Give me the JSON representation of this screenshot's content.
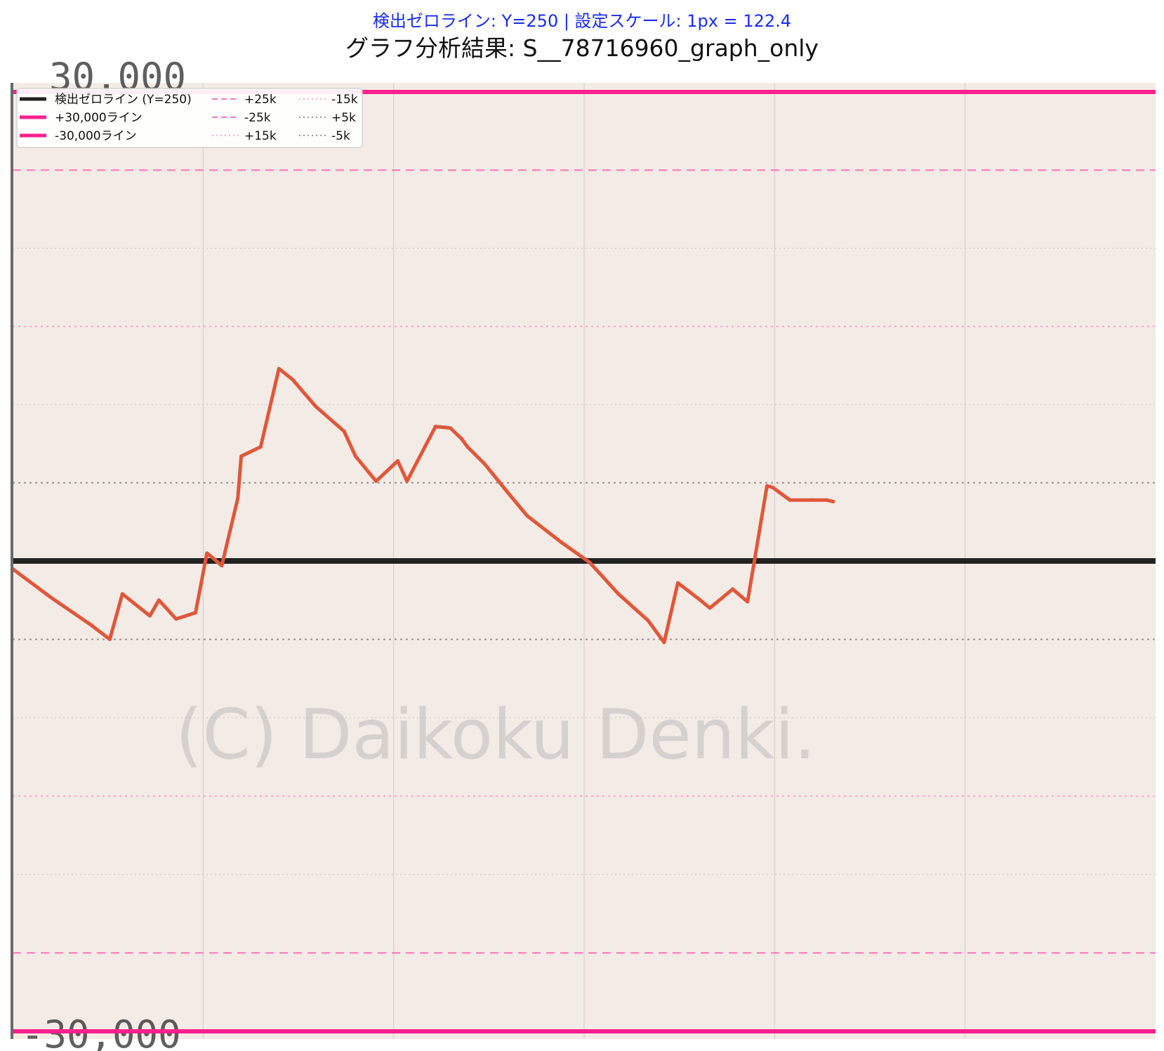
{
  "header": {
    "subtitle": "検出ゼロライン: Y=250 | 設定スケール: 1px = 122.4",
    "title": "グラフ分析結果: S__78716960_graph_only"
  },
  "chart_data": {
    "type": "line",
    "background": "#f3ebe6",
    "ylim": [
      -30000,
      30000
    ],
    "y_tick_labels": {
      "top": "30,000",
      "bottom": "-30,000"
    },
    "watermark": "(C) Daikoku Denki.",
    "reference_lines": [
      {
        "name": "検出ゼロライン (Y=250)",
        "value": 0,
        "color": "#222222",
        "style": "solid"
      },
      {
        "name": "+30,000ライン",
        "value": 30000,
        "color": "#ff1f8e",
        "style": "solid"
      },
      {
        "name": "-30,000ライン",
        "value": -30000,
        "color": "#ff1f8e",
        "style": "solid"
      },
      {
        "name": "+25k",
        "value": 25000,
        "color": "#ff78bb",
        "style": "dashed"
      },
      {
        "name": "-25k",
        "value": -25000,
        "color": "#ff78bb",
        "style": "dashed"
      },
      {
        "name": "+15k",
        "value": 15000,
        "color": "#ffaad0",
        "style": "dotted"
      },
      {
        "name": "-15k",
        "value": -15000,
        "color": "#ffaad0",
        "style": "dotted"
      },
      {
        "name": "+5k",
        "value": 5000,
        "color": "#9a9a9a",
        "style": "dotted"
      },
      {
        "name": "-5k",
        "value": -5000,
        "color": "#9a9a9a",
        "style": "dotted"
      }
    ],
    "legend_placement": "top-left",
    "series": [
      {
        "color": "#e0573a",
        "x": [
          0,
          0.033,
          0.069,
          0.085,
          0.096,
          0.12,
          0.128,
          0.143,
          0.16,
          0.17,
          0.175,
          0.183,
          0.197,
          0.2,
          0.217,
          0.233,
          0.245,
          0.265,
          0.29,
          0.3,
          0.318,
          0.337,
          0.345,
          0.37,
          0.383,
          0.393,
          0.398,
          0.413,
          0.433,
          0.45,
          0.48,
          0.505,
          0.53,
          0.556,
          0.57,
          0.582,
          0.6,
          0.61,
          0.63,
          0.643,
          0.66,
          0.665,
          0.68,
          0.7,
          0.712,
          0.718
        ],
        "y": [
          -500,
          -2300,
          -4100,
          -5000,
          -2100,
          -3500,
          -2500,
          -3700,
          -3300,
          500,
          200,
          -300,
          4000,
          6700,
          7300,
          12300,
          11600,
          9900,
          8300,
          6700,
          5100,
          6400,
          5100,
          8600,
          8500,
          7800,
          7300,
          6200,
          4400,
          2900,
          1200,
          -100,
          -2100,
          -3800,
          -5200,
          -1400,
          -2400,
          -3000,
          -1800,
          -2600,
          4800,
          4700,
          3900,
          3900,
          3900,
          3800
        ]
      }
    ]
  }
}
